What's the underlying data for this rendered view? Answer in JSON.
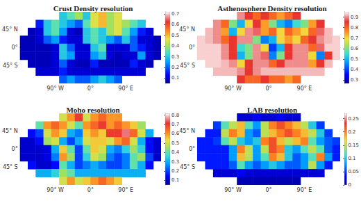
{
  "chart_data": [
    {
      "type": "heatmap",
      "title": "Crust Density resolution",
      "x": [
        -170,
        -150,
        -130,
        -110,
        -90,
        -70,
        -50,
        -30,
        -10,
        10,
        30,
        50,
        70,
        90,
        110,
        130,
        150,
        170
      ],
      "y": [
        80,
        60,
        40,
        20,
        0,
        -20,
        -40,
        -60,
        -80
      ],
      "xlim": [
        -180,
        180
      ],
      "ylim": [
        -90,
        90
      ],
      "xticks": [
        {
          "value": -90,
          "label": "90° W"
        },
        {
          "value": 0,
          "label": "0°"
        },
        {
          "value": 90,
          "label": "90° E"
        }
      ],
      "yticks": [
        {
          "value": -45,
          "label": "45° S"
        },
        {
          "value": 0,
          "label": "0°"
        },
        {
          "value": 45,
          "label": "45° N"
        }
      ],
      "cells": [
        [
          null,
          null,
          null,
          null,
          null,
          0.3,
          0.35,
          0.4,
          0.3,
          0.45,
          0.5,
          0.4,
          0.45,
          null,
          null,
          null,
          null,
          null
        ],
        [
          null,
          null,
          0.15,
          0.3,
          0.35,
          0.3,
          0.25,
          0.2,
          0.35,
          0.45,
          0.5,
          0.4,
          0.45,
          0.4,
          0.35,
          0.3,
          null,
          null
        ],
        [
          null,
          0.08,
          0.1,
          0.3,
          0.35,
          0.25,
          0.1,
          0.08,
          0.3,
          0.35,
          0.3,
          0.4,
          0.45,
          0.35,
          0.25,
          0.15,
          0.1,
          null
        ],
        [
          0.08,
          0.08,
          0.1,
          0.2,
          0.25,
          0.15,
          0.1,
          0.1,
          0.3,
          0.35,
          0.3,
          0.25,
          0.2,
          0.3,
          0.2,
          0.1,
          0.1,
          0.08
        ],
        [
          0.08,
          0.08,
          0.08,
          0.08,
          0.1,
          0.3,
          0.2,
          0.1,
          0.1,
          0.3,
          0.35,
          0.1,
          0.1,
          0.1,
          0.2,
          0.15,
          0.1,
          0.08
        ],
        [
          0.08,
          0.08,
          0.08,
          0.08,
          0.1,
          0.3,
          0.25,
          0.1,
          0.1,
          0.25,
          0.3,
          0.1,
          0.08,
          0.1,
          0.1,
          0.25,
          0.1,
          0.08
        ],
        [
          null,
          0.08,
          0.08,
          0.08,
          0.1,
          0.2,
          0.1,
          0.08,
          0.08,
          0.15,
          0.08,
          0.08,
          0.08,
          0.08,
          0.15,
          0.1,
          0.08,
          null
        ],
        [
          null,
          null,
          0.1,
          0.1,
          0.1,
          0.15,
          0.1,
          0.1,
          0.1,
          0.1,
          0.1,
          0.1,
          0.1,
          0.1,
          0.1,
          0.1,
          null,
          null
        ],
        [
          null,
          null,
          null,
          null,
          null,
          0.2,
          0.25,
          0.2,
          0.2,
          0.25,
          0.3,
          0.25,
          0.2,
          null,
          null,
          null,
          null,
          null
        ]
      ],
      "colorbar": {
        "range": [
          0.05,
          0.72
        ],
        "ticks": [
          0.1,
          0.2,
          0.3,
          0.4,
          0.5,
          0.6,
          0.7
        ]
      }
    },
    {
      "type": "heatmap",
      "title": "Asthenosphere Density resolution",
      "x": [
        -170,
        -150,
        -130,
        -110,
        -90,
        -70,
        -50,
        -30,
        -10,
        10,
        30,
        50,
        70,
        90,
        110,
        130,
        150,
        170
      ],
      "y": [
        80,
        60,
        40,
        20,
        0,
        -20,
        -40,
        -60,
        -80
      ],
      "xlim": [
        -180,
        180
      ],
      "ylim": [
        -90,
        90
      ],
      "xticks": [
        {
          "value": -90,
          "label": "90° W"
        },
        {
          "value": 0,
          "label": "0°"
        },
        {
          "value": 90,
          "label": "90° E"
        }
      ],
      "yticks": [
        {
          "value": -45,
          "label": "45° S"
        },
        {
          "value": 0,
          "label": "0°"
        },
        {
          "value": 45,
          "label": "45° N"
        }
      ],
      "cells": [
        [
          null,
          null,
          null,
          null,
          null,
          0.9,
          0.85,
          0.8,
          0.85,
          0.8,
          0.75,
          0.8,
          0.85,
          null,
          null,
          null,
          null,
          null
        ],
        [
          null,
          null,
          0.9,
          0.8,
          0.6,
          0.5,
          0.7,
          0.85,
          0.75,
          0.6,
          0.5,
          0.45,
          0.55,
          0.6,
          0.75,
          0.85,
          null,
          null
        ],
        [
          null,
          0.92,
          0.9,
          0.75,
          0.5,
          0.7,
          0.9,
          0.88,
          0.75,
          0.8,
          0.7,
          0.8,
          0.75,
          0.7,
          0.8,
          0.88,
          0.92,
          null
        ],
        [
          0.93,
          0.92,
          0.9,
          0.8,
          0.85,
          0.9,
          0.9,
          0.6,
          0.45,
          0.5,
          0.7,
          0.75,
          0.7,
          0.8,
          0.85,
          0.9,
          0.92,
          0.93
        ],
        [
          0.93,
          0.93,
          0.93,
          0.9,
          0.85,
          0.55,
          0.6,
          0.9,
          0.7,
          0.4,
          0.5,
          0.85,
          0.9,
          0.9,
          0.8,
          0.88,
          0.93,
          0.93
        ],
        [
          0.93,
          0.93,
          0.93,
          0.9,
          0.85,
          0.5,
          0.6,
          0.9,
          0.88,
          0.45,
          0.6,
          0.85,
          0.9,
          0.9,
          0.7,
          0.45,
          0.85,
          0.93
        ],
        [
          null,
          0.93,
          0.93,
          0.92,
          0.9,
          0.7,
          0.85,
          0.9,
          0.9,
          0.8,
          0.85,
          0.9,
          0.9,
          0.9,
          0.75,
          0.85,
          0.92,
          null
        ],
        [
          null,
          null,
          0.92,
          0.92,
          0.92,
          0.9,
          0.85,
          0.9,
          0.92,
          0.92,
          0.92,
          0.92,
          0.92,
          0.92,
          0.92,
          0.92,
          null,
          null
        ],
        [
          null,
          null,
          null,
          null,
          null,
          0.85,
          0.8,
          0.8,
          0.85,
          0.8,
          0.8,
          0.75,
          0.8,
          null,
          null,
          null,
          null,
          null
        ]
      ],
      "colorbar": {
        "range": [
          0.27,
          0.95
        ],
        "ticks": [
          0.3,
          0.4,
          0.5,
          0.6,
          0.7,
          0.8,
          0.9
        ]
      }
    },
    {
      "type": "heatmap",
      "title": "Moho resolution",
      "x": [
        -170,
        -150,
        -130,
        -110,
        -90,
        -70,
        -50,
        -30,
        -10,
        10,
        30,
        50,
        70,
        90,
        110,
        130,
        150,
        170
      ],
      "y": [
        80,
        60,
        40,
        20,
        0,
        -20,
        -40,
        -60,
        -80
      ],
      "xlim": [
        -180,
        180
      ],
      "ylim": [
        -90,
        90
      ],
      "xticks": [
        {
          "value": -90,
          "label": "90° W"
        },
        {
          "value": 0,
          "label": "0°"
        },
        {
          "value": 90,
          "label": "90° E"
        }
      ],
      "yticks": [
        {
          "value": -45,
          "label": "45° S"
        },
        {
          "value": 0,
          "label": "0°"
        },
        {
          "value": 45,
          "label": "45° N"
        }
      ],
      "cells": [
        [
          null,
          null,
          null,
          null,
          null,
          0.5,
          0.6,
          0.7,
          0.5,
          0.6,
          0.65,
          0.6,
          0.6,
          null,
          null,
          null,
          null,
          null
        ],
        [
          null,
          null,
          0.4,
          0.6,
          0.65,
          0.6,
          0.5,
          0.4,
          0.6,
          0.65,
          0.7,
          0.6,
          0.65,
          0.6,
          0.55,
          0.45,
          null,
          null
        ],
        [
          null,
          0.15,
          0.2,
          0.5,
          0.6,
          0.55,
          0.3,
          0.25,
          0.55,
          0.6,
          0.55,
          0.7,
          0.7,
          0.75,
          0.65,
          0.5,
          0.3,
          null
        ],
        [
          0.1,
          0.1,
          0.15,
          0.45,
          0.5,
          0.3,
          0.2,
          0.3,
          0.5,
          0.55,
          0.55,
          0.5,
          0.6,
          0.65,
          0.5,
          0.3,
          0.15,
          0.1
        ],
        [
          0.1,
          0.1,
          0.1,
          0.12,
          0.3,
          0.55,
          0.4,
          0.2,
          0.4,
          0.55,
          0.5,
          0.3,
          0.25,
          0.35,
          0.45,
          0.35,
          0.15,
          0.1
        ],
        [
          0.1,
          0.1,
          0.1,
          0.12,
          0.25,
          0.6,
          0.45,
          0.2,
          0.35,
          0.5,
          0.45,
          0.25,
          0.2,
          0.25,
          0.4,
          0.45,
          0.2,
          0.1
        ],
        [
          null,
          0.15,
          0.1,
          0.1,
          0.15,
          0.4,
          0.3,
          0.2,
          0.25,
          0.3,
          0.25,
          0.2,
          0.2,
          0.25,
          0.4,
          0.3,
          0.15,
          null
        ],
        [
          null,
          null,
          0.3,
          0.3,
          0.35,
          0.45,
          0.4,
          0.3,
          0.3,
          0.3,
          0.3,
          0.3,
          0.3,
          0.3,
          0.3,
          0.3,
          null,
          null
        ],
        [
          null,
          null,
          null,
          null,
          null,
          0.5,
          0.6,
          0.5,
          0.55,
          0.6,
          0.65,
          0.6,
          0.55,
          null,
          null,
          null,
          null,
          null
        ]
      ],
      "colorbar": {
        "range": [
          0.05,
          0.82
        ],
        "ticks": [
          0.1,
          0.2,
          0.3,
          0.4,
          0.5,
          0.6,
          0.7,
          0.8
        ]
      }
    },
    {
      "type": "heatmap",
      "title": "LAB resolution",
      "x": [
        -170,
        -150,
        -130,
        -110,
        -90,
        -70,
        -50,
        -30,
        -10,
        10,
        30,
        50,
        70,
        90,
        110,
        130,
        150,
        170
      ],
      "y": [
        80,
        60,
        40,
        20,
        0,
        -20,
        -40,
        -60,
        -80
      ],
      "xlim": [
        -180,
        180
      ],
      "ylim": [
        -90,
        90
      ],
      "xticks": [
        {
          "value": -90,
          "label": "90° W"
        },
        {
          "value": 0,
          "label": "0°"
        },
        {
          "value": 90,
          "label": "90° E"
        }
      ],
      "yticks": [
        {
          "value": -45,
          "label": "45° S"
        },
        {
          "value": 0,
          "label": "0°"
        },
        {
          "value": 45,
          "label": "45° N"
        }
      ],
      "cells": [
        [
          null,
          null,
          null,
          null,
          null,
          0.02,
          0.02,
          0.03,
          0.02,
          0.02,
          0.03,
          0.02,
          0.02,
          null,
          null,
          null,
          null,
          null
        ],
        [
          null,
          null,
          0.05,
          0.12,
          0.15,
          0.18,
          0.12,
          0.08,
          0.15,
          0.2,
          0.22,
          0.2,
          0.18,
          0.15,
          0.1,
          0.05,
          null,
          null
        ],
        [
          null,
          0.04,
          0.04,
          0.15,
          0.2,
          0.18,
          0.08,
          0.06,
          0.15,
          0.18,
          0.2,
          0.22,
          0.2,
          0.18,
          0.15,
          0.1,
          0.05,
          null
        ],
        [
          0.04,
          0.04,
          0.05,
          0.12,
          0.15,
          0.1,
          0.08,
          0.1,
          0.2,
          0.22,
          0.18,
          0.15,
          0.18,
          0.2,
          0.12,
          0.08,
          0.06,
          0.05
        ],
        [
          0.04,
          0.04,
          0.04,
          0.04,
          0.08,
          0.2,
          0.15,
          0.08,
          0.15,
          0.22,
          0.2,
          0.1,
          0.08,
          0.12,
          0.15,
          0.12,
          0.06,
          0.04
        ],
        [
          0.04,
          0.04,
          0.04,
          0.04,
          0.08,
          0.18,
          0.15,
          0.08,
          0.12,
          0.2,
          0.18,
          0.1,
          0.06,
          0.08,
          0.12,
          0.2,
          0.08,
          0.04
        ],
        [
          null,
          0.04,
          0.04,
          0.04,
          0.06,
          0.12,
          0.08,
          0.06,
          0.08,
          0.1,
          0.08,
          0.06,
          0.06,
          0.08,
          0.15,
          0.08,
          0.04,
          null
        ],
        [
          null,
          null,
          0.02,
          0.02,
          0.02,
          0.03,
          0.02,
          0.02,
          0.02,
          0.02,
          0.02,
          0.02,
          0.02,
          0.02,
          0.02,
          0.02,
          null,
          null
        ],
        [
          null,
          null,
          null,
          null,
          null,
          0.01,
          0.01,
          0.01,
          0.01,
          0.01,
          0.01,
          0.01,
          0.01,
          null,
          null,
          null,
          null,
          null
        ]
      ],
      "colorbar": {
        "range": [
          0,
          0.27
        ],
        "ticks": [
          0,
          0.05,
          0.1,
          0.15,
          0.2,
          0.25
        ]
      }
    }
  ]
}
